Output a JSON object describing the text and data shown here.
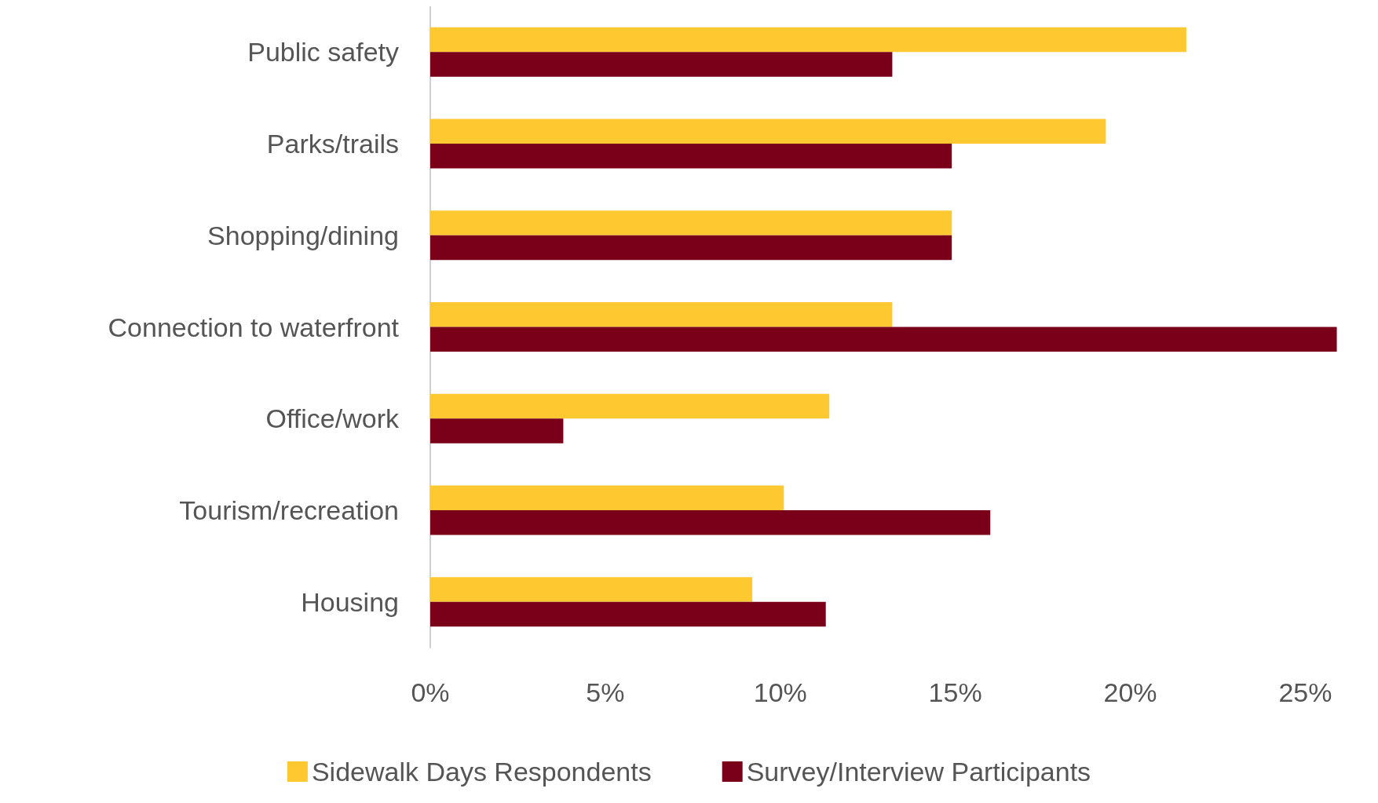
{
  "chart_data": {
    "type": "bar",
    "orientation": "horizontal",
    "categories": [
      "Public safety",
      "Parks/trails",
      "Shopping/dining",
      "Connection to waterfront",
      "Office/work",
      "Tourism/recreation",
      "Housing"
    ],
    "series": [
      {
        "name": "Sidewalk Days Respondents",
        "color": "#fec831",
        "values": [
          21.6,
          19.3,
          14.9,
          13.2,
          11.4,
          10.1,
          9.2
        ]
      },
      {
        "name": "Survey/Interview Participants",
        "color": "#7a0019",
        "values": [
          13.2,
          14.9,
          14.9,
          25.9,
          3.8,
          16.0,
          11.3
        ]
      }
    ],
    "xlim": [
      0,
      26
    ],
    "xticks": [
      {
        "value": 0,
        "label": "0%"
      },
      {
        "value": 5,
        "label": "5%"
      },
      {
        "value": 10,
        "label": "10%"
      },
      {
        "value": 15,
        "label": "15%"
      },
      {
        "value": 20,
        "label": "20%"
      },
      {
        "value": 25,
        "label": "25%"
      }
    ],
    "grid": false,
    "legend": "bottom"
  }
}
